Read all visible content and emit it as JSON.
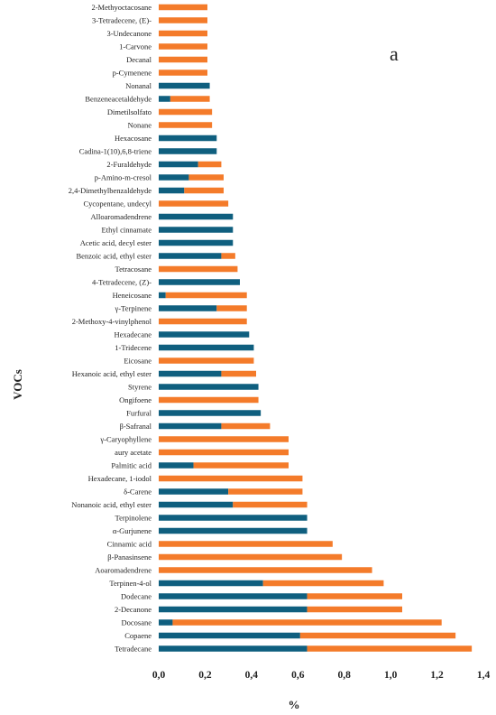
{
  "chart_data": {
    "type": "bar",
    "orientation": "horizontal",
    "stacked": true,
    "panel_label": "a",
    "xlabel": "%",
    "ylabel": "VOCs",
    "xlim": [
      0,
      1.4
    ],
    "x_ticks": [
      "0,0",
      "0,2",
      "0,4",
      "0,6",
      "0,8",
      "1,0",
      "1,2",
      "1,4"
    ],
    "grid": false,
    "colors": {
      "series_1": "#0f5f7f",
      "series_2": "#f47b2a"
    },
    "categories": [
      "2-Methyoctacosane",
      "3-Tetradecene, (E)-",
      "3-Undecanone",
      "1-Carvone",
      "Decanal",
      "p-Cymenene",
      "Nonanal",
      "Benzeneacetaldehyde",
      "Dimetilsolfato",
      "Nonane",
      "Hexacosane",
      "Cadina-1(10),6,8-triene",
      "2-Furaldehyde",
      "p-Amino-m-cresol",
      "2,4-Dimethylbenzaldehyde",
      "Cycopentane, undecyl",
      "Alloaromadendrene",
      "Ethyl cinnamate",
      "Acetic acid, decyl ester",
      "Benzoic acid, ethyl ester",
      "Tetracosane",
      "4-Tetradecene, (Z)-",
      "Heneicosane",
      "γ-Terpinene",
      "2-Methoxy-4-vinylphenol",
      "Hexadecane",
      "1-Tridecene",
      "Eicosane",
      "Hexanoic acid, ethyl ester",
      "Styrene",
      "Ongifoene",
      "Furfural",
      "β-Safranal",
      "γ-Caryophyllene",
      "aury acetate",
      "Palmitic acid",
      "Hexadecane, 1-iodol",
      "δ-Carene",
      "Nonanoic acid, ethyl ester",
      "Terpinolene",
      "α-Gurjunene",
      "Cinnamic acid",
      "β-Panasinsene",
      "Aoaromadendrene",
      "Terpinen-4-ol",
      "Dodecane",
      "2-Decanone",
      "Docosane",
      "Copaene",
      "Tetradecane"
    ],
    "series": [
      {
        "values": [
          0,
          0,
          0,
          0,
          0,
          0,
          0.22,
          0.05,
          0,
          0,
          0.25,
          0.25,
          0.17,
          0.13,
          0.11,
          0,
          0.32,
          0.32,
          0.32,
          0.27,
          0,
          0.35,
          0.03,
          0.25,
          0,
          0.39,
          0.41,
          0,
          0.27,
          0.43,
          0,
          0.44,
          0.27,
          0,
          0,
          0.15,
          0,
          0.3,
          0.32,
          0.64,
          0.64,
          0,
          0,
          0,
          0.45,
          0.64,
          0.64,
          0.06,
          0.61,
          0.64
        ]
      },
      {
        "values": [
          0.21,
          0.21,
          0.21,
          0.21,
          0.21,
          0.21,
          0,
          0.17,
          0.23,
          0.23,
          0,
          0,
          0.1,
          0.15,
          0.17,
          0.3,
          0,
          0,
          0,
          0.06,
          0.34,
          0,
          0.35,
          0.13,
          0.38,
          0,
          0,
          0.41,
          0.15,
          0,
          0.43,
          0,
          0.21,
          0.56,
          0.56,
          0.41,
          0.62,
          0.32,
          0.32,
          0,
          0,
          0.75,
          0.79,
          0.92,
          0.52,
          0.41,
          0.41,
          1.16,
          0.67,
          0.71
        ]
      }
    ]
  }
}
